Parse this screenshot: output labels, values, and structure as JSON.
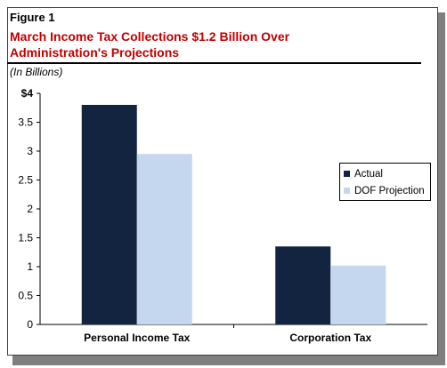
{
  "figure": {
    "label": "Figure 1",
    "title_lines": [
      "March Income  Tax Collections $1.2 Billion Over",
      "Administration's  Projections"
    ],
    "units": "(In Billions)"
  },
  "colors": {
    "title": "#c00000",
    "actual": "#12243f",
    "projection": "#c5d7ef"
  },
  "chart_data": {
    "type": "bar",
    "categories": [
      "Personal Income Tax",
      "Corporation Tax"
    ],
    "series": [
      {
        "name": "Actual",
        "values": [
          3.8,
          1.35
        ]
      },
      {
        "name": "DOF Projection",
        "values": [
          2.95,
          1.02
        ]
      }
    ],
    "ylim": [
      0,
      4
    ],
    "yticks": [
      0,
      0.5,
      1,
      1.5,
      2,
      2.5,
      3,
      3.5,
      4
    ],
    "ytick_labels": [
      "0",
      "0.5",
      "1",
      "1.5",
      "2",
      "2.5",
      "3",
      "3.5",
      "$4"
    ],
    "grid": false,
    "legend": "right"
  }
}
